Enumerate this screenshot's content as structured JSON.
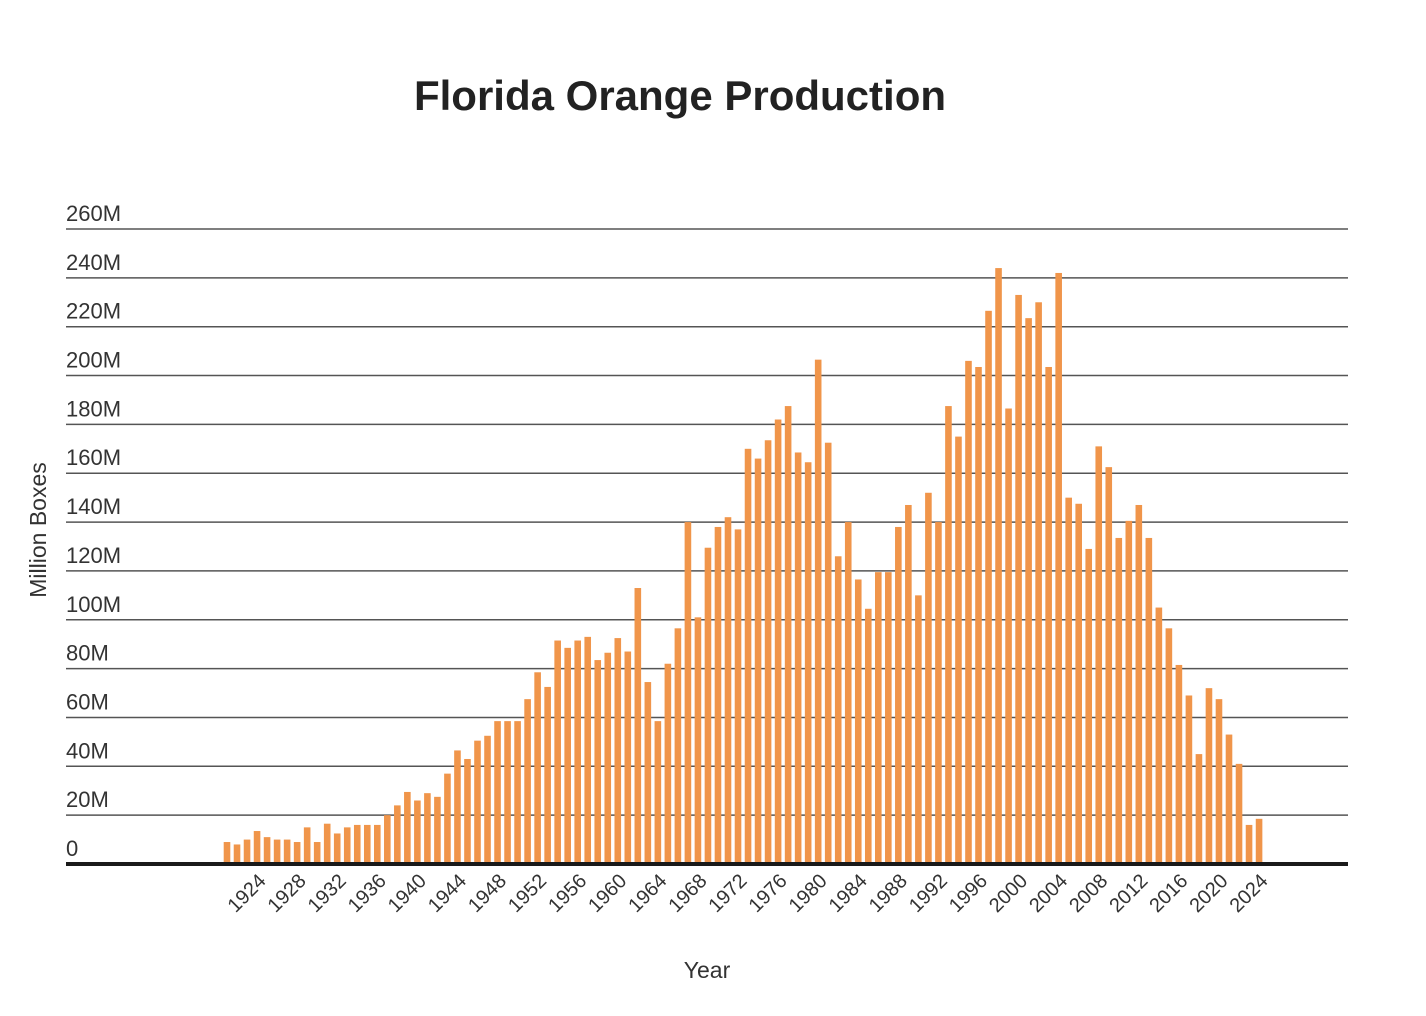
{
  "chart_data": {
    "type": "bar",
    "title": "Florida Orange Production",
    "xlabel": "Year",
    "ylabel": "Million Boxes",
    "ylim": [
      0,
      260000000
    ],
    "grid": true,
    "legend": "none",
    "bar_color": "#F0954A",
    "y_ticks": [
      {
        "value": 0,
        "label": "0"
      },
      {
        "value": 20000000,
        "label": "20M"
      },
      {
        "value": 40000000,
        "label": "40M"
      },
      {
        "value": 60000000,
        "label": "60M"
      },
      {
        "value": 80000000,
        "label": "80M"
      },
      {
        "value": 100000000,
        "label": "100M"
      },
      {
        "value": 120000000,
        "label": "120M"
      },
      {
        "value": 140000000,
        "label": "140M"
      },
      {
        "value": 160000000,
        "label": "160M"
      },
      {
        "value": 180000000,
        "label": "180M"
      },
      {
        "value": 200000000,
        "label": "200M"
      },
      {
        "value": 220000000,
        "label": "220M"
      },
      {
        "value": 240000000,
        "label": "240M"
      },
      {
        "value": 260000000,
        "label": "260M"
      }
    ],
    "x_tick_labels": [
      "1924",
      "1928",
      "1932",
      "1936",
      "1940",
      "1944",
      "1948",
      "1952",
      "1956",
      "1960",
      "1964",
      "1968",
      "1972",
      "1976",
      "1980",
      "1984",
      "1988",
      "1992",
      "1996",
      "2000",
      "2004",
      "2008",
      "2012",
      "2016",
      "2020",
      "2024"
    ],
    "categories": [
      1921,
      1922,
      1923,
      1924,
      1925,
      1926,
      1927,
      1928,
      1929,
      1930,
      1931,
      1932,
      1933,
      1934,
      1935,
      1936,
      1937,
      1938,
      1939,
      1940,
      1941,
      1942,
      1943,
      1944,
      1945,
      1946,
      1947,
      1948,
      1949,
      1950,
      1951,
      1952,
      1953,
      1954,
      1955,
      1956,
      1957,
      1958,
      1959,
      1960,
      1961,
      1962,
      1963,
      1964,
      1965,
      1966,
      1967,
      1968,
      1969,
      1970,
      1971,
      1972,
      1973,
      1974,
      1975,
      1976,
      1977,
      1978,
      1979,
      1980,
      1981,
      1982,
      1983,
      1984,
      1985,
      1986,
      1987,
      1988,
      1989,
      1990,
      1991,
      1992,
      1993,
      1994,
      1995,
      1996,
      1997,
      1998,
      1999,
      2000,
      2001,
      2002,
      2003,
      2004,
      2005,
      2006,
      2007,
      2008,
      2009,
      2010,
      2011,
      2012,
      2013,
      2014,
      2015,
      2016,
      2017,
      2018,
      2019,
      2020,
      2021,
      2022,
      2023,
      2024
    ],
    "values": [
      9000000,
      8000000,
      10000000,
      13500000,
      11000000,
      10000000,
      10000000,
      9000000,
      15000000,
      9000000,
      16500000,
      12500000,
      15000000,
      16000000,
      16000000,
      16000000,
      20000000,
      24000000,
      29500000,
      26000000,
      29000000,
      27500000,
      37000000,
      46500000,
      43000000,
      50500000,
      52500000,
      58500000,
      58500000,
      58500000,
      67500000,
      78500000,
      72500000,
      91500000,
      88500000,
      91500000,
      93000000,
      83500000,
      86500000,
      92500000,
      87000000,
      113000000,
      74500000,
      58500000,
      82000000,
      96500000,
      140000000,
      101000000,
      129500000,
      138000000,
      142000000,
      137000000,
      170000000,
      166000000,
      173500000,
      182000000,
      187500000,
      168500000,
      164500000,
      206500000,
      172500000,
      126000000,
      140000000,
      116500000,
      104500000,
      119500000,
      119500000,
      138000000,
      147000000,
      110000000,
      152000000,
      140000000,
      187500000,
      175000000,
      206000000,
      203500000,
      226500000,
      244000000,
      186500000,
      233000000,
      223500000,
      230000000,
      203500000,
      242000000,
      150000000,
      147500000,
      129000000,
      171000000,
      162500000,
      133500000,
      140500000,
      147000000,
      133500000,
      105000000,
      96500000,
      81500000,
      69000000,
      45000000,
      72000000,
      67500000,
      53000000,
      41000000,
      16000000,
      18500000
    ]
  }
}
